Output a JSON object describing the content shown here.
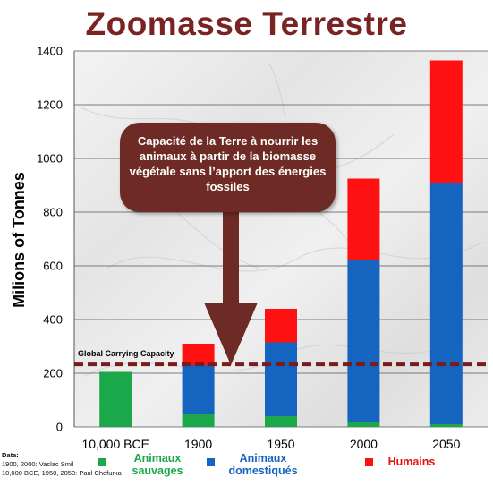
{
  "chart_data": {
    "type": "bar",
    "stacked": true,
    "title": "Zoomasse Terrestre",
    "ylabel": "Milions of Tonnes",
    "xlabel": "",
    "categories": [
      "10,000 BCE",
      "1900",
      "1950",
      "2000",
      "2050"
    ],
    "ylim": [
      0,
      1400
    ],
    "yticks": [
      0,
      200,
      400,
      600,
      800,
      1000,
      1200,
      1400
    ],
    "series": [
      {
        "name": "Animaux sauvages",
        "color": "#1aa84a",
        "values": [
          205,
          50,
          40,
          20,
          10
        ]
      },
      {
        "name": "Animaux domestiqués",
        "color": "#1565c0",
        "values": [
          0,
          180,
          275,
          600,
          900
        ]
      },
      {
        "name": "Humains",
        "color": "#ff1111",
        "values": [
          0,
          80,
          125,
          305,
          455
        ]
      }
    ],
    "reference_line": {
      "label": "Global Carrying Capacity",
      "value": 233,
      "color": "#7a1a1a"
    },
    "annotation": "Capacité de la Terre à nourrir les animaux à partir de la biomasse végétale sans l’apport des énergies fossiles",
    "grid": true,
    "legend_position": "bottom"
  },
  "credits": {
    "heading": "Data:",
    "line1": "1900, 2000: Vaclac Smil",
    "line2": "10,000 BCE, 1950, 2050: Paul Chefurka"
  }
}
